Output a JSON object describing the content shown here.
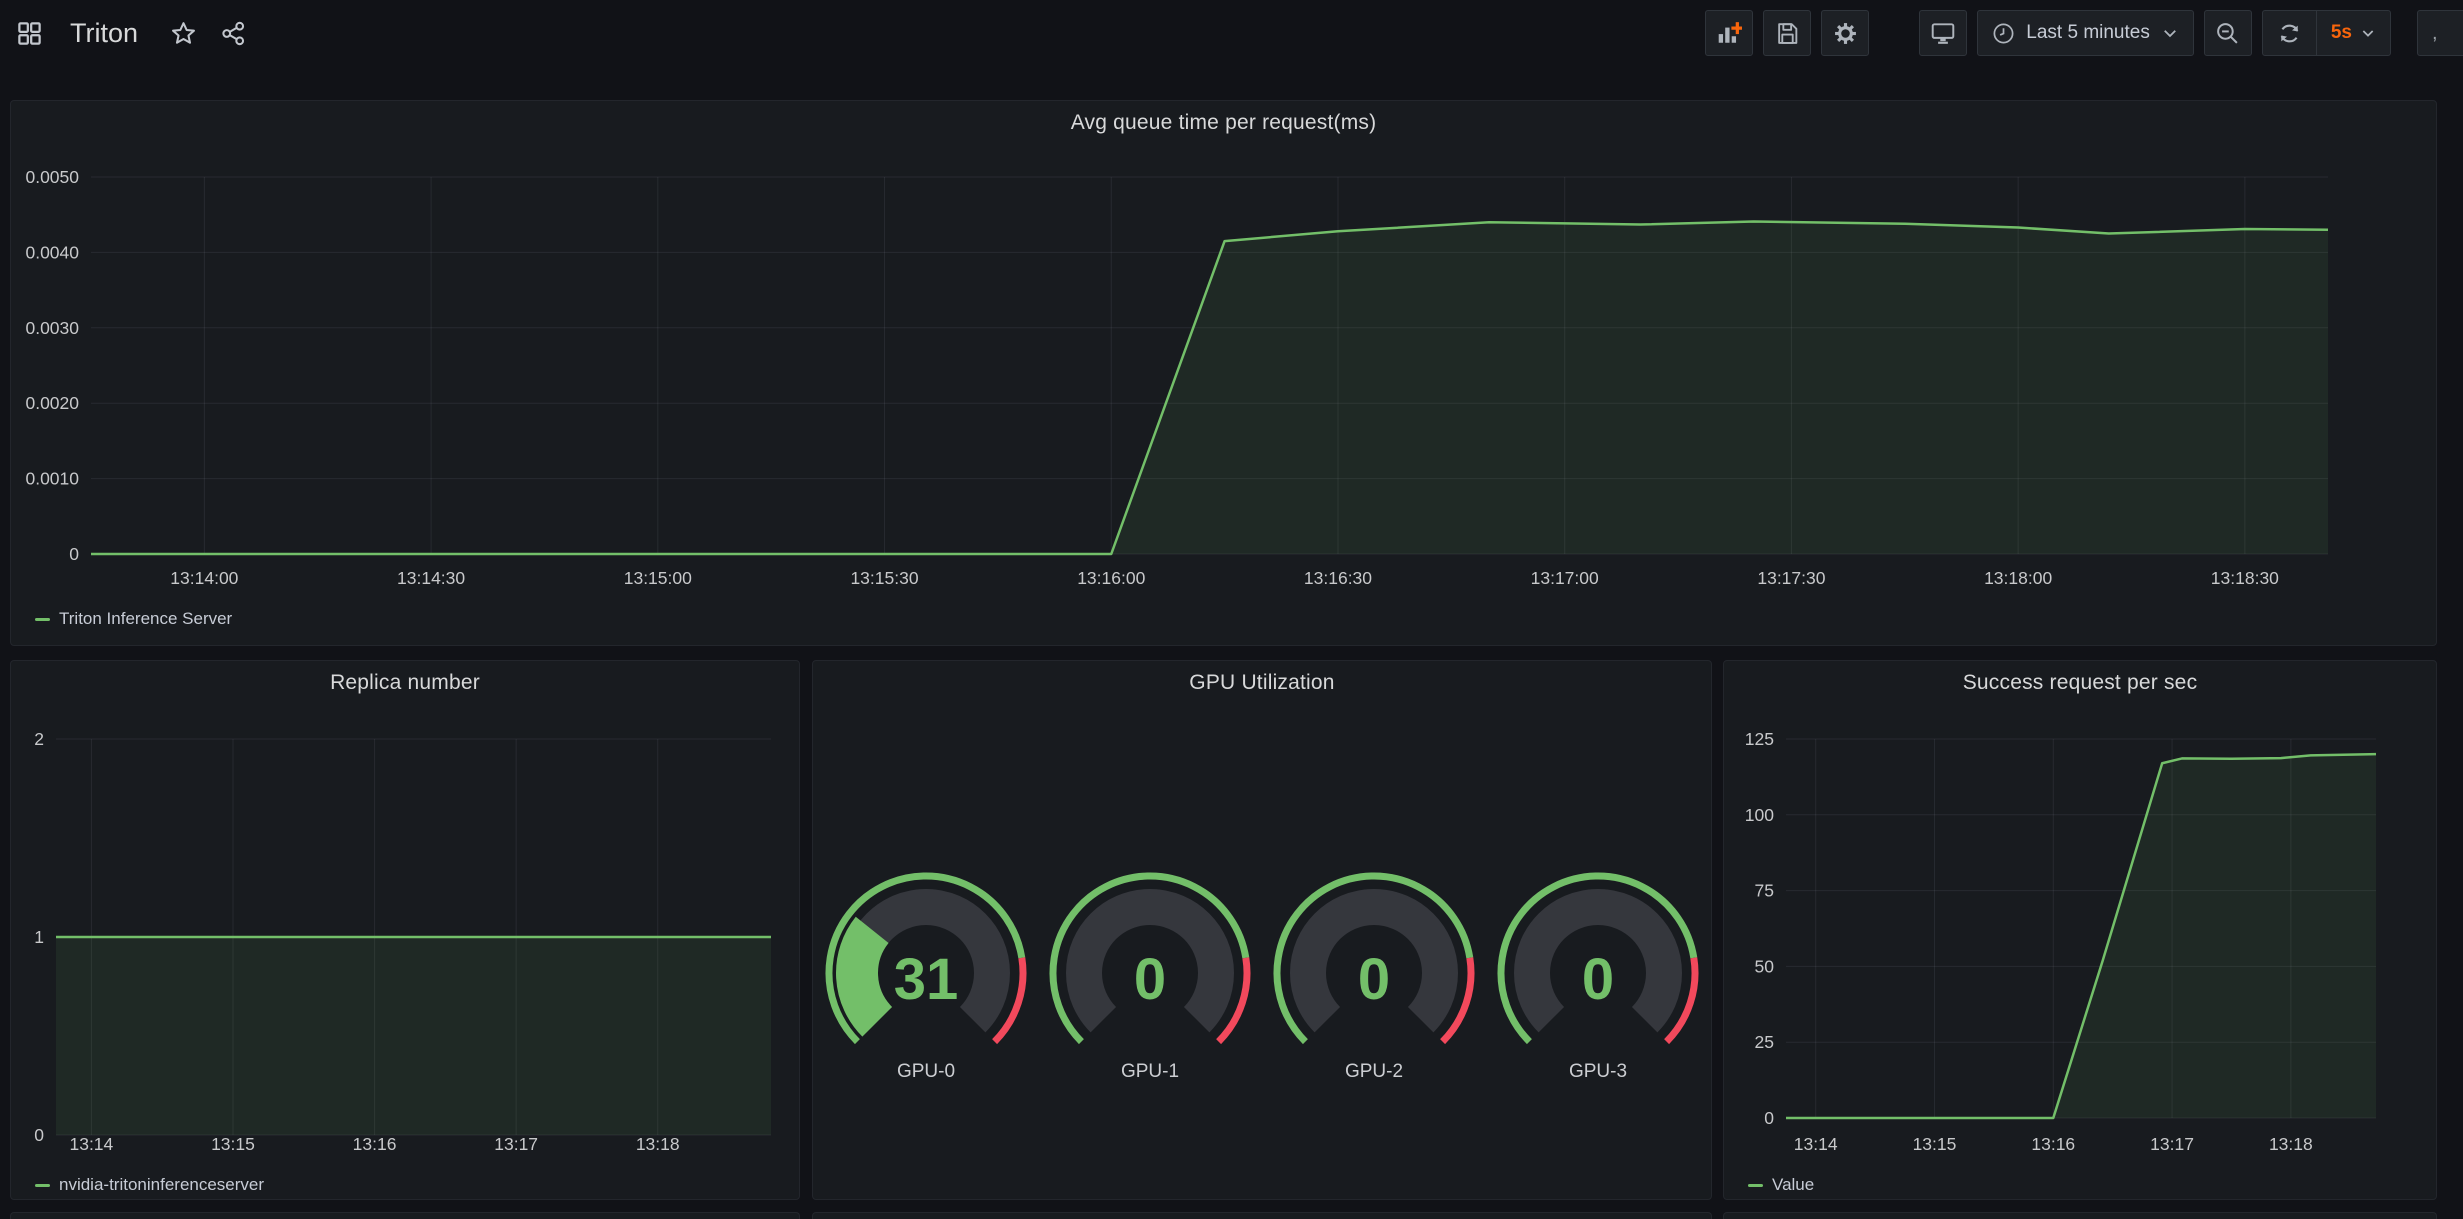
{
  "header": {
    "app_title": "Triton",
    "toolbar": {
      "time_range_label": "Last 5 minutes",
      "refresh_interval_label": "5s",
      "partial_glyph": ","
    }
  },
  "colors": {
    "green": "#73BF69",
    "red": "#F2495C",
    "orange": "#F8650C",
    "page_bg": "#111217",
    "panel_bg": "#181B1F",
    "grid": "rgba(204,204,220,0.09)",
    "axis_text": "#C8C9CB",
    "title_text": "#D8D9DA",
    "gauge_track": "#35373D"
  },
  "chart_data": [
    {
      "id": "queue",
      "type": "line",
      "title": "Avg queue time per request(ms)",
      "legend_label": "Triton Inference Server",
      "x_end_s": 296,
      "ylim": [
        0,
        0.005
      ],
      "x_ticks": [
        {
          "t": 15,
          "label": "13:14:00"
        },
        {
          "t": 45,
          "label": "13:14:30"
        },
        {
          "t": 75,
          "label": "13:15:00"
        },
        {
          "t": 105,
          "label": "13:15:30"
        },
        {
          "t": 135,
          "label": "13:16:00"
        },
        {
          "t": 165,
          "label": "13:16:30"
        },
        {
          "t": 195,
          "label": "13:17:00"
        },
        {
          "t": 225,
          "label": "13:17:30"
        },
        {
          "t": 255,
          "label": "13:18:00"
        },
        {
          "t": 285,
          "label": "13:18:30"
        }
      ],
      "y_ticks": [
        {
          "v": 0,
          "label": "0"
        },
        {
          "v": 0.001,
          "label": "0.0010"
        },
        {
          "v": 0.002,
          "label": "0.0020"
        },
        {
          "v": 0.003,
          "label": "0.0030"
        },
        {
          "v": 0.004,
          "label": "0.0040"
        },
        {
          "v": 0.005,
          "label": "0.0050"
        }
      ],
      "series": [
        {
          "name": "Triton Inference Server",
          "points": [
            [
              0,
              0
            ],
            [
              15,
              0
            ],
            [
              45,
              0
            ],
            [
              75,
              0
            ],
            [
              105,
              0
            ],
            [
              135,
              0
            ],
            [
              150,
              0.00415
            ],
            [
              165,
              0.00428
            ],
            [
              185,
              0.0044
            ],
            [
              205,
              0.00437
            ],
            [
              220,
              0.00441
            ],
            [
              240,
              0.00438
            ],
            [
              255,
              0.00433
            ],
            [
              267,
              0.00425
            ],
            [
              285,
              0.00431
            ],
            [
              296,
              0.0043
            ]
          ]
        }
      ]
    },
    {
      "id": "replica",
      "type": "line",
      "title": "Replica number",
      "legend_label": "nvidia-tritoninferenceserver",
      "x_end_s": 303,
      "ylim": [
        0,
        2
      ],
      "x_ticks": [
        {
          "t": 15,
          "label": "13:14"
        },
        {
          "t": 75,
          "label": "13:15"
        },
        {
          "t": 135,
          "label": "13:16"
        },
        {
          "t": 195,
          "label": "13:17"
        },
        {
          "t": 255,
          "label": "13:18"
        }
      ],
      "y_ticks": [
        {
          "v": 0,
          "label": "0"
        },
        {
          "v": 1,
          "label": "1"
        },
        {
          "v": 2,
          "label": "2"
        }
      ],
      "series": [
        {
          "name": "nvidia-tritoninferenceserver",
          "points": [
            [
              0,
              1
            ],
            [
              303,
              1
            ]
          ]
        }
      ]
    },
    {
      "id": "gpu",
      "type": "gauge",
      "title": "GPU Utilization",
      "min": 0,
      "max": 100,
      "threshold_red_from": 80,
      "gauges": [
        {
          "label": "GPU-0",
          "value": 31
        },
        {
          "label": "GPU-1",
          "value": 0
        },
        {
          "label": "GPU-2",
          "value": 0
        },
        {
          "label": "GPU-3",
          "value": 0
        }
      ]
    },
    {
      "id": "success",
      "type": "line",
      "title": "Success request per sec",
      "legend_label": "Value",
      "x_end_s": 298,
      "ylim": [
        0,
        125
      ],
      "x_ticks": [
        {
          "t": 15,
          "label": "13:14"
        },
        {
          "t": 75,
          "label": "13:15"
        },
        {
          "t": 135,
          "label": "13:16"
        },
        {
          "t": 195,
          "label": "13:17"
        },
        {
          "t": 255,
          "label": "13:18"
        }
      ],
      "y_ticks": [
        {
          "v": 0,
          "label": "0"
        },
        {
          "v": 25,
          "label": "25"
        },
        {
          "v": 50,
          "label": "50"
        },
        {
          "v": 75,
          "label": "75"
        },
        {
          "v": 100,
          "label": "100"
        },
        {
          "v": 125,
          "label": "125"
        }
      ],
      "series": [
        {
          "name": "Value",
          "points": [
            [
              0,
              0
            ],
            [
              60,
              0
            ],
            [
              135,
              0
            ],
            [
              160,
              52
            ],
            [
              190,
              117
            ],
            [
              200,
              118.6
            ],
            [
              225,
              118.5
            ],
            [
              250,
              118.7
            ],
            [
              265,
              119.6
            ],
            [
              298,
              120
            ]
          ]
        }
      ]
    }
  ]
}
